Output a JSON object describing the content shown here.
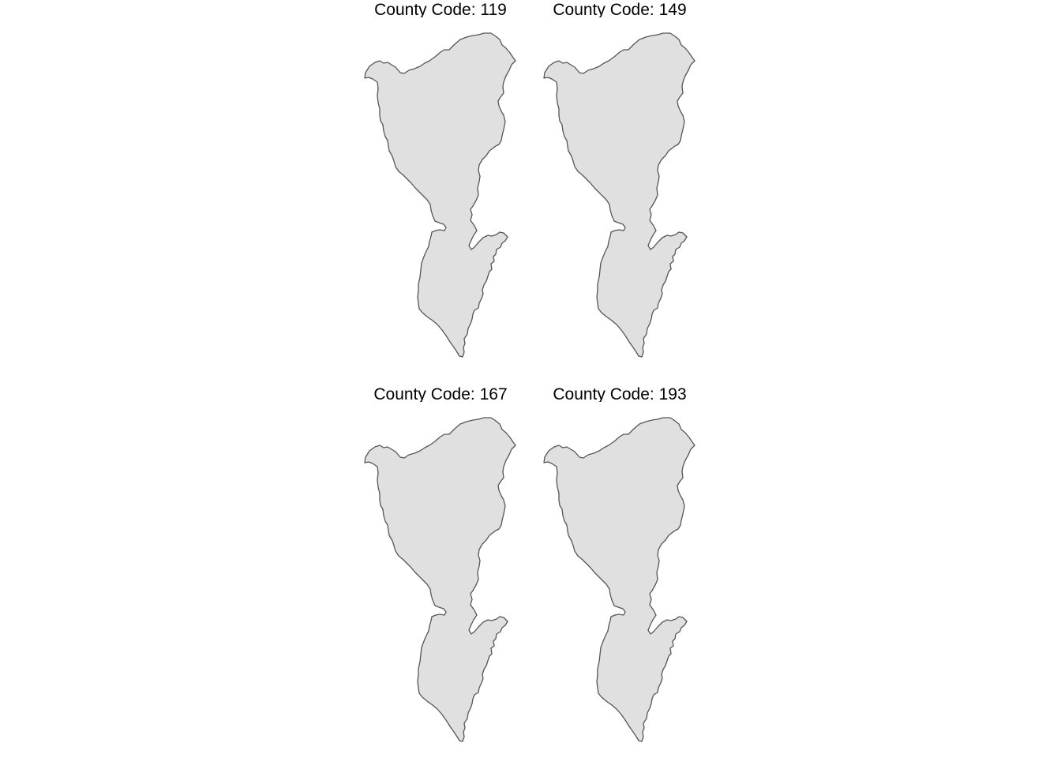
{
  "facets": [
    {
      "title": "County Code: 119"
    },
    {
      "title": "County Code: 149"
    },
    {
      "title": "County Code: 167"
    },
    {
      "title": "County Code: 193"
    }
  ],
  "colors": {
    "fill": "#e0e0e0",
    "stroke": "#555555",
    "text": "#000000",
    "background": "#ffffff"
  }
}
